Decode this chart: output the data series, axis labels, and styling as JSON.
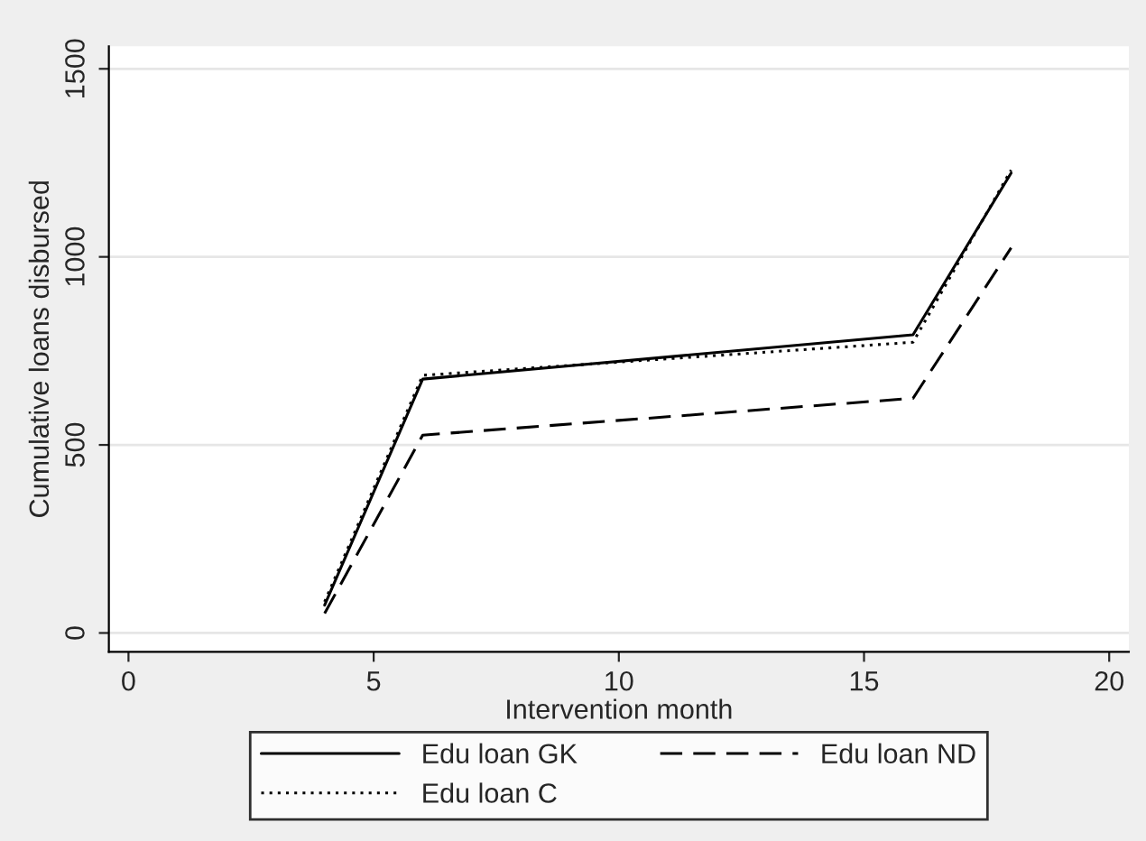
{
  "chart_data": {
    "type": "line",
    "xlabel": "Intervention month",
    "ylabel": "Cumulative loans disbursed",
    "series": [
      {
        "name": "Edu loan GK",
        "color": "#000000",
        "line_style": "solid",
        "x": [
          4,
          6,
          16,
          18
        ],
        "values": [
          74,
          675,
          793,
          1223
        ]
      },
      {
        "name": "Edu loan ND",
        "color": "#000000",
        "line_style": "dashed",
        "x": [
          4,
          6,
          16,
          18
        ],
        "values": [
          52,
          526,
          624,
          1024
        ]
      },
      {
        "name": "Edu loan C",
        "color": "#000000",
        "line_style": "dotted",
        "x": [
          4,
          6,
          16,
          18
        ],
        "values": [
          83,
          685,
          773,
          1231
        ]
      }
    ],
    "xlim": [
      -0.4,
      20.4
    ],
    "ylim": [
      -50,
      1560
    ],
    "xticks": [
      0,
      5,
      10,
      15,
      20
    ],
    "yticks": [
      0,
      500,
      1000,
      1500
    ],
    "grid": "y",
    "legend": "bottom",
    "marker": "none"
  }
}
